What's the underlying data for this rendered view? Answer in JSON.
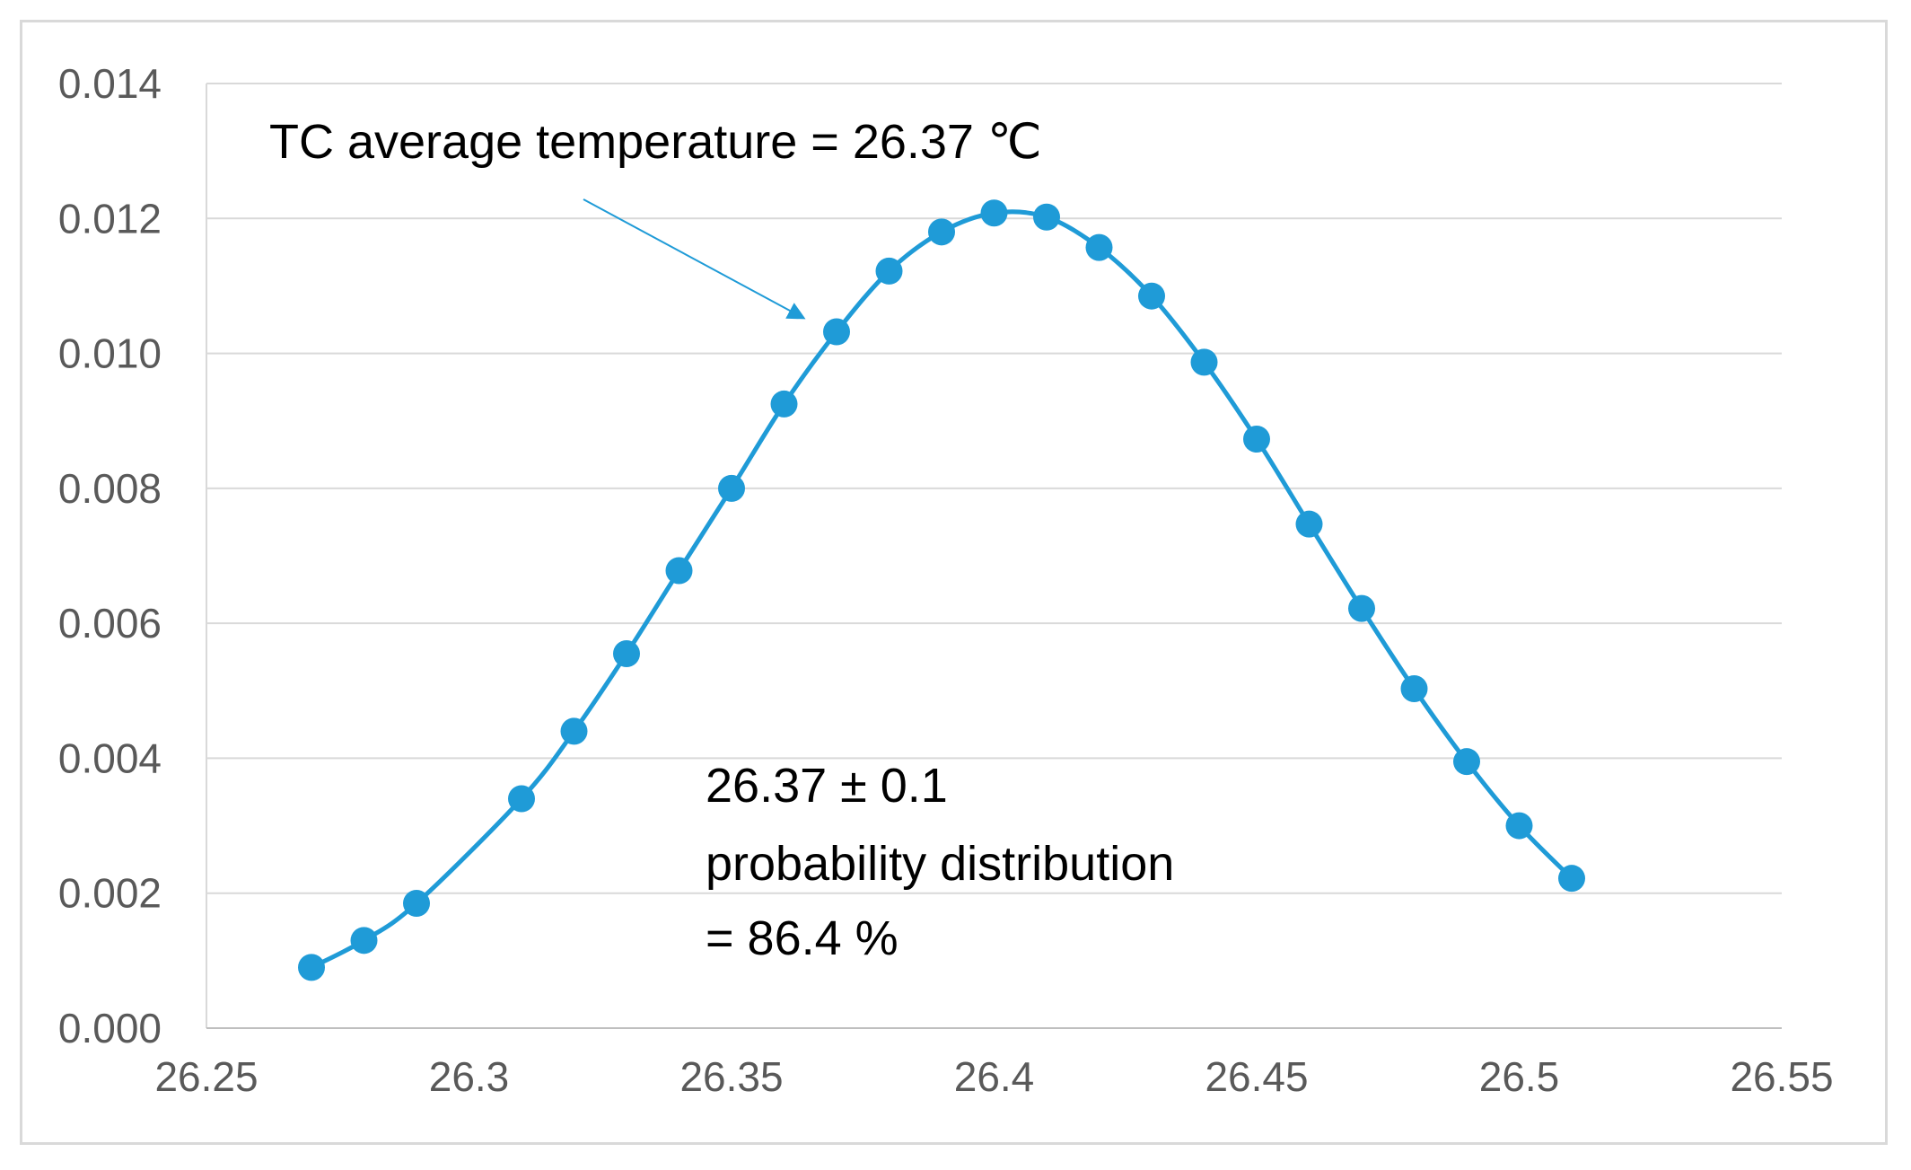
{
  "chart_data": {
    "type": "line",
    "title": "",
    "xlabel": "",
    "ylabel": "",
    "xlim": [
      26.25,
      26.55
    ],
    "ylim": [
      0.0,
      0.014
    ],
    "grid": true,
    "x_ticks": [
      "26.25",
      "26.3",
      "26.35",
      "26.4",
      "26.45",
      "26.5",
      "26.55"
    ],
    "x_tick_values": [
      26.25,
      26.3,
      26.35,
      26.4,
      26.45,
      26.5,
      26.55
    ],
    "y_ticks": [
      "0.000",
      "0.002",
      "0.004",
      "0.006",
      "0.008",
      "0.010",
      "0.012",
      "0.014"
    ],
    "y_tick_values": [
      0.0,
      0.002,
      0.004,
      0.006,
      0.008,
      0.01,
      0.012,
      0.014
    ],
    "series": [
      {
        "name": "probability distribution",
        "color": "#1f9bd7",
        "x": [
          26.27,
          26.28,
          26.29,
          26.31,
          26.32,
          26.33,
          26.34,
          26.35,
          26.36,
          26.37,
          26.38,
          26.39,
          26.4,
          26.41,
          26.42,
          26.43,
          26.44,
          26.45,
          26.46,
          26.47,
          26.48,
          26.49,
          26.5,
          26.51
        ],
        "y": [
          0.0009,
          0.0013,
          0.00185,
          0.0034,
          0.0044,
          0.00555,
          0.00678,
          0.008,
          0.00925,
          0.01032,
          0.01122,
          0.0118,
          0.01208,
          0.01202,
          0.01157,
          0.01085,
          0.00987,
          0.00873,
          0.00747,
          0.00622,
          0.00503,
          0.00395,
          0.003,
          0.00222
        ]
      }
    ],
    "annotations": [
      {
        "text": "TC average temperature = 26.37 ℃",
        "arrow_to_x": 26.37,
        "arrow_to_y": 0.01032
      },
      {
        "lines": [
          "26.37 ± 0.1",
          "probability distribution",
          "= 86.4 %"
        ]
      }
    ]
  }
}
